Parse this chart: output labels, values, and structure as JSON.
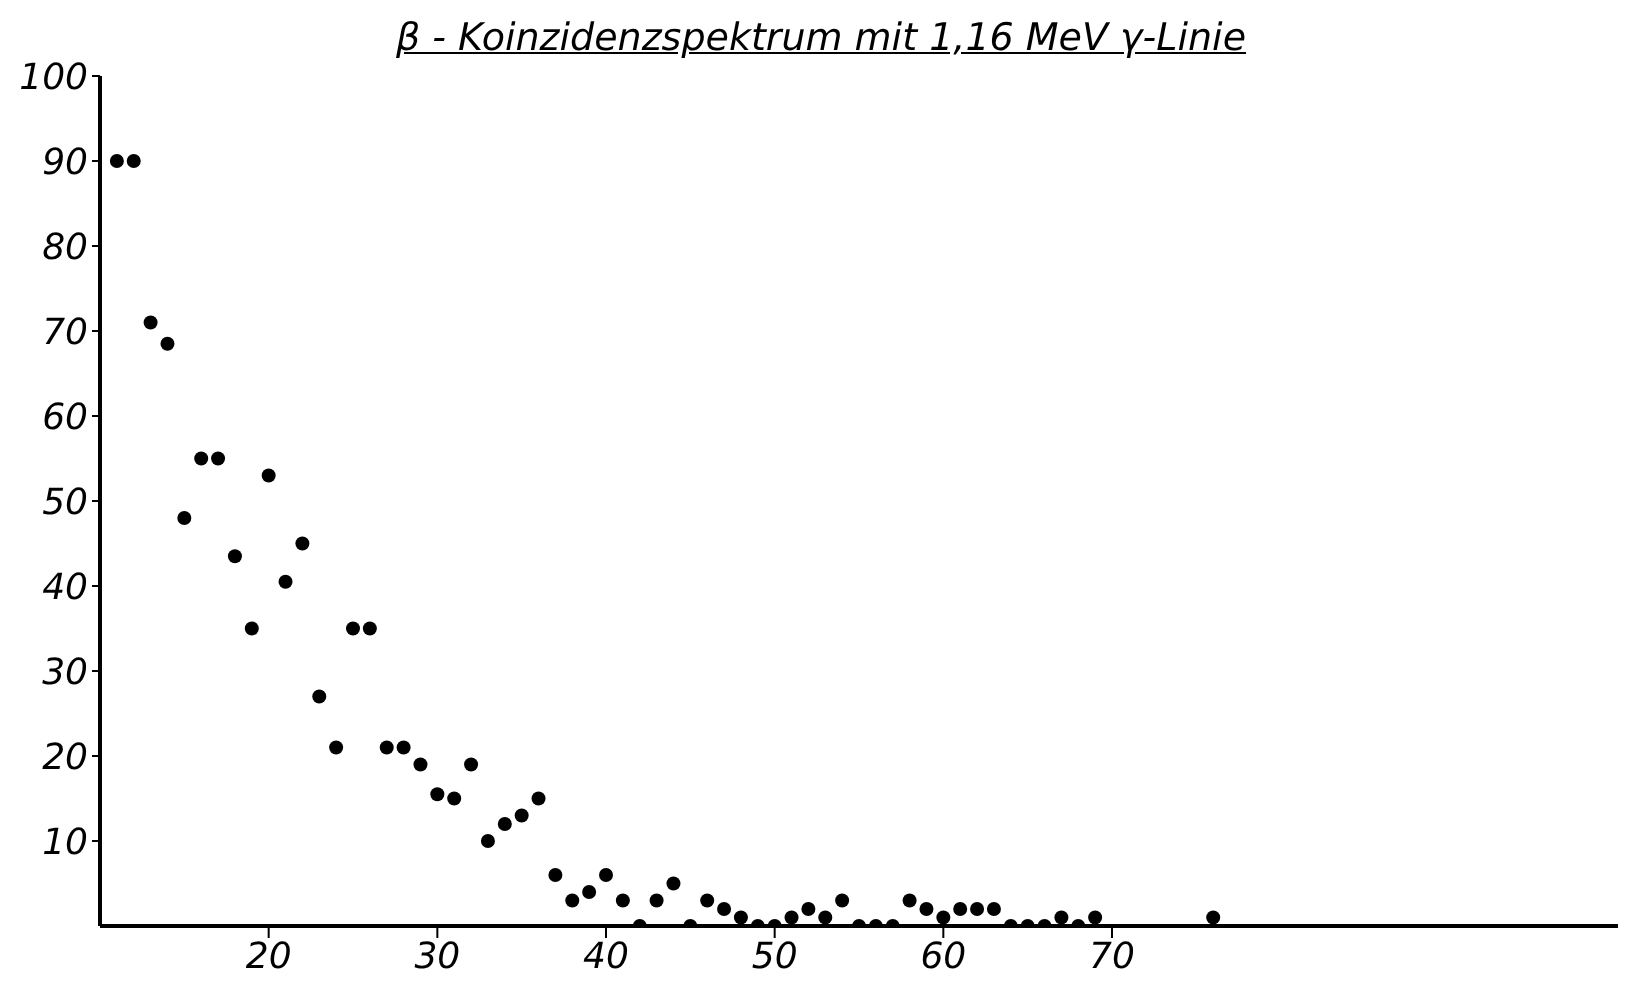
{
  "chart_data": {
    "type": "scatter",
    "title": "β - Koinzidenzspektrum mit 1,16 MeV γ-Linie",
    "x": [
      11,
      12,
      13,
      14,
      15,
      16,
      17,
      18,
      19,
      20,
      21,
      22,
      23,
      24,
      25,
      26,
      27,
      28,
      29,
      30,
      31,
      32,
      33,
      34,
      35,
      36,
      37,
      38,
      39,
      40,
      41,
      42,
      43,
      44,
      45,
      46,
      47,
      48,
      49,
      50,
      51,
      52,
      53,
      54,
      55,
      56,
      57,
      58,
      59,
      60,
      61,
      62,
      63,
      64,
      65,
      66,
      67,
      68,
      69,
      76
    ],
    "series": [
      {
        "color": "#000000",
        "values": [
          90,
          90,
          71,
          68.5,
          48,
          55,
          55,
          43.5,
          35,
          53,
          40.5,
          45,
          27,
          21,
          35,
          35,
          21,
          21,
          19,
          15.5,
          15,
          19,
          10,
          12,
          13,
          15,
          6,
          3,
          4,
          6,
          3,
          0,
          3,
          5,
          0,
          3,
          2,
          1,
          0,
          0,
          1,
          2,
          1,
          3,
          0,
          0,
          0,
          3,
          2,
          1,
          2,
          2,
          2,
          0,
          0,
          0,
          1,
          0,
          1,
          1
        ]
      }
    ],
    "xlim": [
      10,
      100
    ],
    "xticks": [
      20,
      30,
      40,
      50,
      60,
      70
    ],
    "ylim": [
      0,
      100
    ],
    "yticks": [
      10,
      20,
      30,
      40,
      50,
      60,
      70,
      80,
      90,
      100
    ],
    "grid": false,
    "marker": "circle"
  }
}
